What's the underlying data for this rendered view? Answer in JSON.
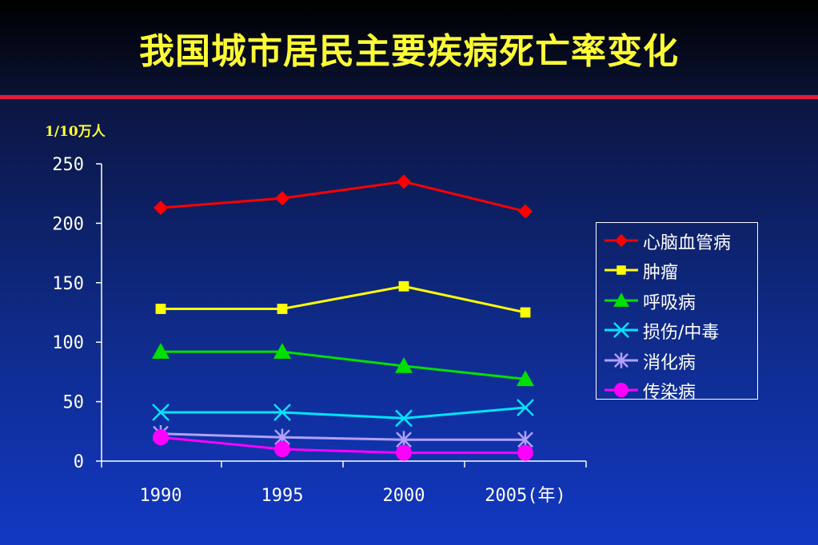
{
  "title": "我国城市居民主要疾病死亡率变化",
  "unit_label": "1/10万人",
  "colors": {
    "title": "#ffff33",
    "rule": "#e21b3c",
    "axis": "#ffffff"
  },
  "chart_data": {
    "type": "line",
    "title": "我国城市居民主要疾病死亡率变化",
    "ylabel": "1/10万人",
    "xlabel": "",
    "categories": [
      "1990",
      "1995",
      "2000",
      "2005(年)"
    ],
    "ylim": [
      0,
      250
    ],
    "yticks": [
      0,
      50,
      100,
      150,
      200,
      250
    ],
    "grid": false,
    "legend_position": "right",
    "series": [
      {
        "name": "心脑血管病",
        "color": "#ff0000",
        "marker": "diamond",
        "values": [
          213,
          221,
          235,
          210
        ]
      },
      {
        "name": "肿瘤",
        "color": "#ffff00",
        "marker": "square",
        "values": [
          128,
          128,
          147,
          125
        ]
      },
      {
        "name": "呼吸病",
        "color": "#00e000",
        "marker": "triangle",
        "values": [
          92,
          92,
          80,
          69
        ]
      },
      {
        "name": "损伤/中毒",
        "color": "#00e5ff",
        "marker": "x",
        "values": [
          41,
          41,
          36,
          45
        ]
      },
      {
        "name": "消化病",
        "color": "#b0a0ff",
        "marker": "star",
        "values": [
          23,
          20,
          18,
          18
        ]
      },
      {
        "name": "传染病",
        "color": "#ff00ff",
        "marker": "circle",
        "values": [
          20,
          10,
          7,
          7
        ]
      }
    ]
  }
}
